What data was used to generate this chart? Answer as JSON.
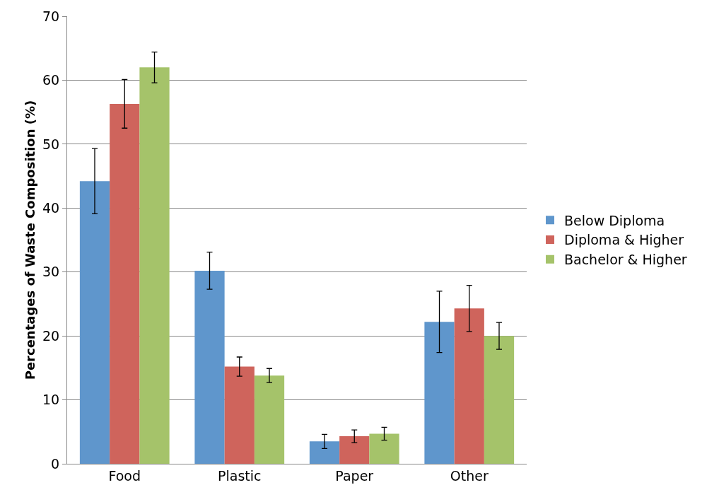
{
  "chart_data": {
    "type": "bar",
    "ylabel": "Percentages of Waste Composition (%)",
    "categories": [
      "Food",
      "Plastic",
      "Paper",
      "Other"
    ],
    "series": [
      {
        "name": "Below Diploma",
        "color": "#5f96cc",
        "values": [
          44.2,
          30.2,
          3.5,
          22.2
        ],
        "errors": [
          5.1,
          2.9,
          1.1,
          4.8
        ]
      },
      {
        "name": "Diploma & Higher",
        "color": "#cf645c",
        "values": [
          56.3,
          15.2,
          4.3,
          24.3
        ],
        "errors": [
          3.8,
          1.5,
          1.0,
          3.6
        ]
      },
      {
        "name": "Bachelor & Higher",
        "color": "#a5c36a",
        "values": [
          62.0,
          13.8,
          4.7,
          20.0
        ],
        "errors": [
          2.4,
          1.1,
          1.0,
          2.1
        ]
      }
    ],
    "ylim": [
      0,
      70
    ],
    "yticks": [
      0,
      10,
      20,
      30,
      40,
      50,
      60,
      70
    ],
    "grid": "y",
    "legend": "right"
  }
}
